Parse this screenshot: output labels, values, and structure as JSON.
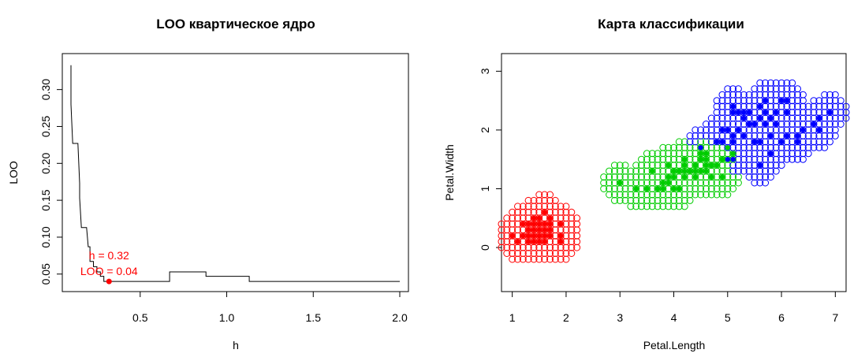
{
  "chart_data": [
    {
      "type": "line",
      "title": "LOO квартическое ядро",
      "xlabel": "h",
      "ylabel": "LOO",
      "xlim": [
        0.1,
        2.0
      ],
      "ylim": [
        0.038,
        0.337
      ],
      "x_ticks": [
        "0.5",
        "1.0",
        "1.5",
        "2.0"
      ],
      "y_ticks": [
        "0.05",
        "0.10",
        "0.15",
        "0.20",
        "0.25",
        "0.30"
      ],
      "series": [
        {
          "values": [
            [
              0.1,
              0.333
            ],
            [
              0.1,
              0.28
            ],
            [
              0.11,
              0.227
            ],
            [
              0.14,
              0.227
            ],
            [
              0.15,
              0.173
            ],
            [
              0.15,
              0.153
            ],
            [
              0.16,
              0.113
            ],
            [
              0.19,
              0.113
            ],
            [
              0.2,
              0.087
            ],
            [
              0.21,
              0.087
            ],
            [
              0.21,
              0.067
            ],
            [
              0.23,
              0.067
            ],
            [
              0.23,
              0.06
            ],
            [
              0.25,
              0.06
            ],
            [
              0.25,
              0.053
            ],
            [
              0.27,
              0.053
            ],
            [
              0.27,
              0.047
            ],
            [
              0.29,
              0.047
            ],
            [
              0.29,
              0.04
            ],
            [
              0.67,
              0.04
            ],
            [
              0.67,
              0.053
            ],
            [
              0.88,
              0.053
            ],
            [
              0.88,
              0.047
            ],
            [
              1.13,
              0.047
            ],
            [
              1.13,
              0.04
            ],
            [
              2.0,
              0.04
            ]
          ]
        }
      ],
      "optimum": {
        "x": 0.32,
        "y": 0.04,
        "label_h": "h = 0.32",
        "label_loo": "LOO = 0.04",
        "color": "#ff0000"
      }
    },
    {
      "type": "scatter",
      "title": "Карта классификации",
      "xlabel": "Petal.Length",
      "ylabel": "Petal.Width",
      "xlim": [
        0.8,
        7.2
      ],
      "ylim": [
        -0.75,
        3.3
      ],
      "x_ticks": [
        "1",
        "2",
        "3",
        "4",
        "5",
        "6",
        "7"
      ],
      "y_ticks": [
        "0",
        "1",
        "2",
        "3"
      ],
      "class_colors": {
        "setosa": "#ff0000",
        "versicolor": "#00cc00",
        "virginica": "#0000ff"
      },
      "grid_map": {
        "step_x": 0.1,
        "step_y": 0.1,
        "note_hidden": true
      },
      "points": {
        "setosa": [
          [
            1.4,
            0.2
          ],
          [
            1.3,
            0.2
          ],
          [
            1.5,
            0.2
          ],
          [
            1.7,
            0.4
          ],
          [
            1.4,
            0.3
          ],
          [
            1.5,
            0.1
          ],
          [
            1.6,
            0.2
          ],
          [
            1.1,
            0.1
          ],
          [
            1.2,
            0.2
          ],
          [
            1.3,
            0.4
          ],
          [
            1.7,
            0.3
          ],
          [
            1.0,
            0.2
          ],
          [
            1.9,
            0.2
          ],
          [
            1.6,
            0.4
          ],
          [
            1.5,
            0.4
          ],
          [
            1.6,
            0.6
          ],
          [
            1.9,
            0.4
          ],
          [
            1.4,
            0.1
          ],
          [
            1.2,
            0.4
          ],
          [
            1.3,
            0.3
          ],
          [
            1.5,
            0.3
          ],
          [
            1.6,
            0.1
          ],
          [
            1.7,
            0.2
          ],
          [
            1.4,
            0.4
          ],
          [
            1.3,
            0.1
          ],
          [
            1.6,
            0.3
          ],
          [
            1.5,
            0.5
          ],
          [
            1.9,
            0.1
          ],
          [
            1.7,
            0.5
          ],
          [
            1.4,
            0.5
          ]
        ],
        "versicolor": [
          [
            4.7,
            1.4
          ],
          [
            4.5,
            1.5
          ],
          [
            4.9,
            1.5
          ],
          [
            4.0,
            1.3
          ],
          [
            4.6,
            1.5
          ],
          [
            3.3,
            1.0
          ],
          [
            4.6,
            1.3
          ],
          [
            3.9,
            1.4
          ],
          [
            3.5,
            1.0
          ],
          [
            4.2,
            1.5
          ],
          [
            4.0,
            1.0
          ],
          [
            4.7,
            1.4
          ],
          [
            3.6,
            1.3
          ],
          [
            4.4,
            1.4
          ],
          [
            4.1,
            1.0
          ],
          [
            4.5,
            1.5
          ],
          [
            3.9,
            1.1
          ],
          [
            4.8,
            1.8
          ],
          [
            4.0,
            1.3
          ],
          [
            4.9,
            1.5
          ],
          [
            4.7,
            1.2
          ],
          [
            4.3,
            1.3
          ],
          [
            4.4,
            1.4
          ],
          [
            4.8,
            1.4
          ],
          [
            5.0,
            1.7
          ],
          [
            3.8,
            1.1
          ],
          [
            3.7,
            1.0
          ],
          [
            5.1,
            1.6
          ],
          [
            4.5,
            1.6
          ],
          [
            4.4,
            1.3
          ],
          [
            4.1,
            1.3
          ],
          [
            4.6,
            1.4
          ],
          [
            3.0,
            1.1
          ],
          [
            4.2,
            1.3
          ],
          [
            4.2,
            1.2
          ],
          [
            4.3,
            1.3
          ],
          [
            4.0,
            1.2
          ],
          [
            3.9,
            1.2
          ],
          [
            4.1,
            1.3
          ],
          [
            4.4,
            1.2
          ],
          [
            4.5,
            1.3
          ],
          [
            4.6,
            1.6
          ],
          [
            3.8,
            1.0
          ],
          [
            4.2,
            1.4
          ],
          [
            4.9,
            1.2
          ]
        ],
        "virginica": [
          [
            6.0,
            2.5
          ],
          [
            5.1,
            1.9
          ],
          [
            5.9,
            2.1
          ],
          [
            5.6,
            1.8
          ],
          [
            5.8,
            2.2
          ],
          [
            6.6,
            2.1
          ],
          [
            4.5,
            1.7
          ],
          [
            6.3,
            1.8
          ],
          [
            6.1,
            2.5
          ],
          [
            5.3,
            1.9
          ],
          [
            5.5,
            2.1
          ],
          [
            5.0,
            2.0
          ],
          [
            5.1,
            2.4
          ],
          [
            5.3,
            2.3
          ],
          [
            5.5,
            1.8
          ],
          [
            6.7,
            2.2
          ],
          [
            6.9,
            2.3
          ],
          [
            5.0,
            1.5
          ],
          [
            5.7,
            2.3
          ],
          [
            4.9,
            2.0
          ],
          [
            6.7,
            2.0
          ],
          [
            4.9,
            1.8
          ],
          [
            5.7,
            2.1
          ],
          [
            6.0,
            1.8
          ],
          [
            4.8,
            1.8
          ],
          [
            5.8,
            1.6
          ],
          [
            6.1,
            1.9
          ],
          [
            6.4,
            2.0
          ],
          [
            5.6,
            2.2
          ],
          [
            5.1,
            1.5
          ],
          [
            5.6,
            1.4
          ],
          [
            6.1,
            2.3
          ],
          [
            5.6,
            2.4
          ],
          [
            5.5,
            1.8
          ],
          [
            5.4,
            2.1
          ],
          [
            5.1,
            2.3
          ],
          [
            5.9,
            2.3
          ],
          [
            5.7,
            2.5
          ],
          [
            5.2,
            2.3
          ],
          [
            5.2,
            2.0
          ],
          [
            5.4,
            2.3
          ],
          [
            5.1,
            1.8
          ],
          [
            6.3,
            1.9
          ],
          [
            5.8,
            1.9
          ],
          [
            5.3,
            2.2
          ]
        ]
      }
    }
  ]
}
